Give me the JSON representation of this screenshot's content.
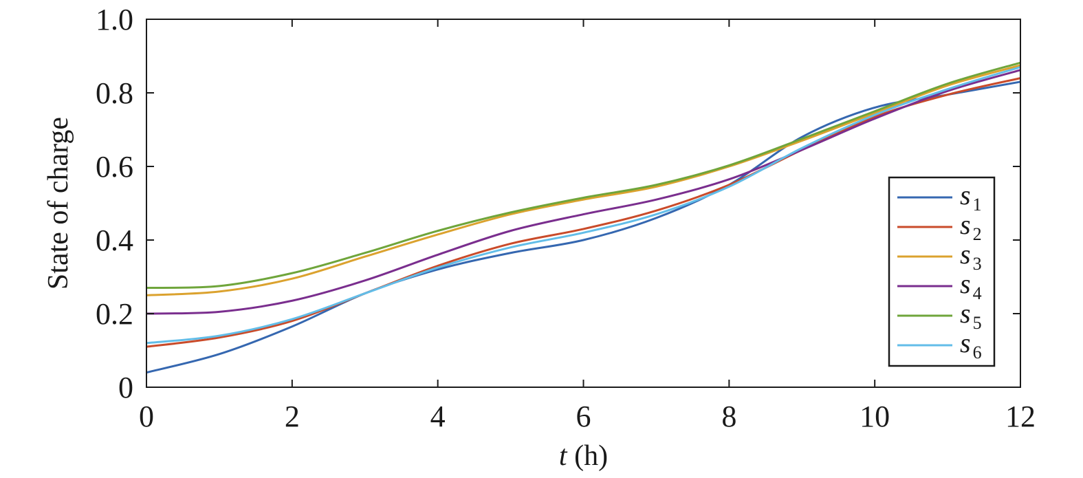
{
  "chart_data": {
    "type": "line",
    "title": "",
    "xlabel": {
      "var": "t",
      "unit": " (h)"
    },
    "ylabel": "State of charge",
    "xlim": [
      0,
      12
    ],
    "ylim": [
      0,
      1.0
    ],
    "xticks": [
      0,
      2,
      4,
      6,
      8,
      10,
      12
    ],
    "yticks": [
      0,
      0.2,
      0.4,
      0.6,
      0.8,
      1.0
    ],
    "xtick_labels": [
      "0",
      "2",
      "4",
      "6",
      "8",
      "10",
      "12"
    ],
    "ytick_labels": [
      "0",
      "0.2",
      "0.4",
      "0.6",
      "0.8",
      "1.0"
    ],
    "grid": false,
    "legend_position": "right",
    "x": [
      0,
      1,
      2,
      3,
      4,
      5,
      6,
      7,
      8,
      9,
      10,
      11,
      12
    ],
    "series": [
      {
        "name": "s",
        "sub": "1",
        "color": "#3567b0",
        "values": [
          0.04,
          0.09,
          0.165,
          0.255,
          0.32,
          0.365,
          0.4,
          0.46,
          0.55,
          0.68,
          0.76,
          0.795,
          0.83
        ]
      },
      {
        "name": "s",
        "sub": "2",
        "color": "#c94b2a",
        "values": [
          0.11,
          0.135,
          0.18,
          0.255,
          0.33,
          0.39,
          0.43,
          0.48,
          0.55,
          0.645,
          0.735,
          0.795,
          0.84
        ]
      },
      {
        "name": "s",
        "sub": "3",
        "color": "#dba22e",
        "values": [
          0.25,
          0.26,
          0.295,
          0.355,
          0.415,
          0.47,
          0.51,
          0.545,
          0.6,
          0.67,
          0.745,
          0.82,
          0.875
        ]
      },
      {
        "name": "s",
        "sub": "4",
        "color": "#7a2e8e",
        "values": [
          0.2,
          0.205,
          0.235,
          0.29,
          0.36,
          0.425,
          0.47,
          0.51,
          0.565,
          0.645,
          0.73,
          0.805,
          0.862
        ]
      },
      {
        "name": "s",
        "sub": "5",
        "color": "#6fa53b",
        "values": [
          0.27,
          0.275,
          0.31,
          0.365,
          0.425,
          0.475,
          0.515,
          0.55,
          0.603,
          0.675,
          0.75,
          0.825,
          0.882
        ]
      },
      {
        "name": "s",
        "sub": "6",
        "color": "#62bde8",
        "values": [
          0.12,
          0.14,
          0.185,
          0.255,
          0.325,
          0.38,
          0.42,
          0.47,
          0.545,
          0.65,
          0.74,
          0.81,
          0.87
        ]
      }
    ]
  }
}
